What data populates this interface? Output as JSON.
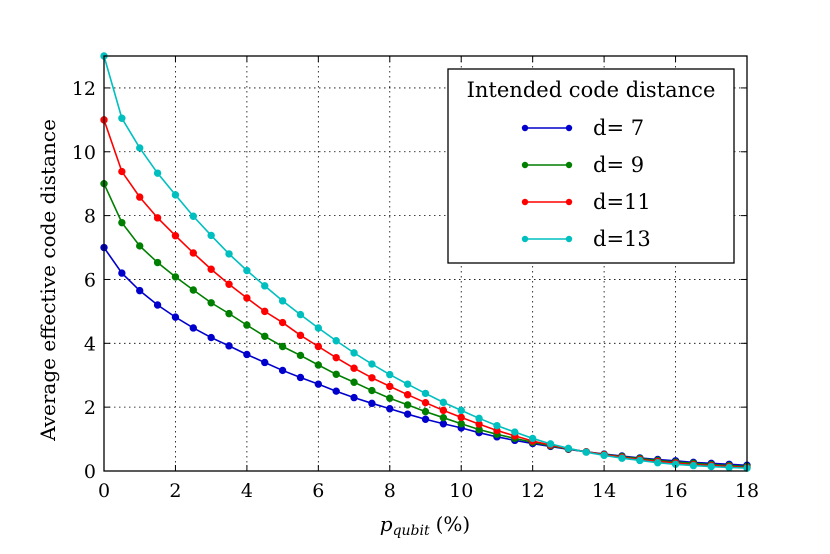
{
  "chart_data": {
    "type": "line",
    "xlabel_main": "p",
    "xlabel_sub": "qubit",
    "xlabel_unit": "(%)",
    "ylabel": "Average effective code distance",
    "xlim": [
      0,
      18
    ],
    "ylim": [
      0,
      13
    ],
    "xticks": [
      0,
      2,
      4,
      6,
      8,
      10,
      12,
      14,
      16,
      18
    ],
    "yticks": [
      0,
      2,
      4,
      6,
      8,
      10,
      12
    ],
    "grid": true,
    "legend": {
      "title": "Intended code distance",
      "placement": "top-right"
    },
    "x": [
      0,
      0.5,
      1,
      1.5,
      2,
      2.5,
      3,
      3.5,
      4,
      4.5,
      5,
      5.5,
      6,
      6.5,
      7,
      7.5,
      8,
      8.5,
      9,
      9.5,
      10,
      10.5,
      11,
      11.5,
      12,
      12.5,
      13,
      13.5,
      14,
      14.5,
      15,
      15.5,
      16,
      16.5,
      17,
      17.5,
      18
    ],
    "series": [
      {
        "name": "d= 7",
        "color": "#0000cc",
        "values": [
          7.0,
          6.2,
          5.65,
          5.2,
          4.82,
          4.48,
          4.18,
          3.92,
          3.65,
          3.4,
          3.15,
          2.93,
          2.72,
          2.5,
          2.3,
          2.12,
          1.95,
          1.78,
          1.62,
          1.48,
          1.35,
          1.2,
          1.07,
          0.96,
          0.86,
          0.77,
          0.68,
          0.6,
          0.53,
          0.47,
          0.41,
          0.36,
          0.32,
          0.27,
          0.24,
          0.21,
          0.18
        ]
      },
      {
        "name": "d= 9",
        "color": "#007f00",
        "values": [
          9.0,
          7.78,
          7.05,
          6.53,
          6.08,
          5.67,
          5.27,
          4.93,
          4.57,
          4.22,
          3.9,
          3.62,
          3.32,
          3.03,
          2.78,
          2.52,
          2.28,
          2.07,
          1.86,
          1.67,
          1.48,
          1.3,
          1.15,
          1.02,
          0.9,
          0.79,
          0.69,
          0.6,
          0.52,
          0.45,
          0.39,
          0.33,
          0.28,
          0.24,
          0.2,
          0.17,
          0.14
        ]
      },
      {
        "name": "d=11",
        "color": "#ff0000",
        "values": [
          11.0,
          9.38,
          8.58,
          7.93,
          7.37,
          6.83,
          6.32,
          5.85,
          5.42,
          5.0,
          4.65,
          4.25,
          3.9,
          3.55,
          3.22,
          2.92,
          2.65,
          2.39,
          2.14,
          1.9,
          1.68,
          1.47,
          1.27,
          1.1,
          0.94,
          0.81,
          0.7,
          0.6,
          0.51,
          0.43,
          0.36,
          0.3,
          0.25,
          0.2,
          0.17,
          0.14,
          0.11
        ]
      },
      {
        "name": "d=13",
        "color": "#00bfbf",
        "values": [
          13.0,
          11.05,
          10.12,
          9.33,
          8.65,
          7.98,
          7.38,
          6.8,
          6.28,
          5.8,
          5.33,
          4.9,
          4.48,
          4.08,
          3.7,
          3.35,
          3.02,
          2.72,
          2.43,
          2.15,
          1.9,
          1.65,
          1.42,
          1.22,
          1.02,
          0.85,
          0.71,
          0.59,
          0.49,
          0.4,
          0.33,
          0.26,
          0.21,
          0.17,
          0.14,
          0.11,
          0.09
        ]
      }
    ]
  }
}
